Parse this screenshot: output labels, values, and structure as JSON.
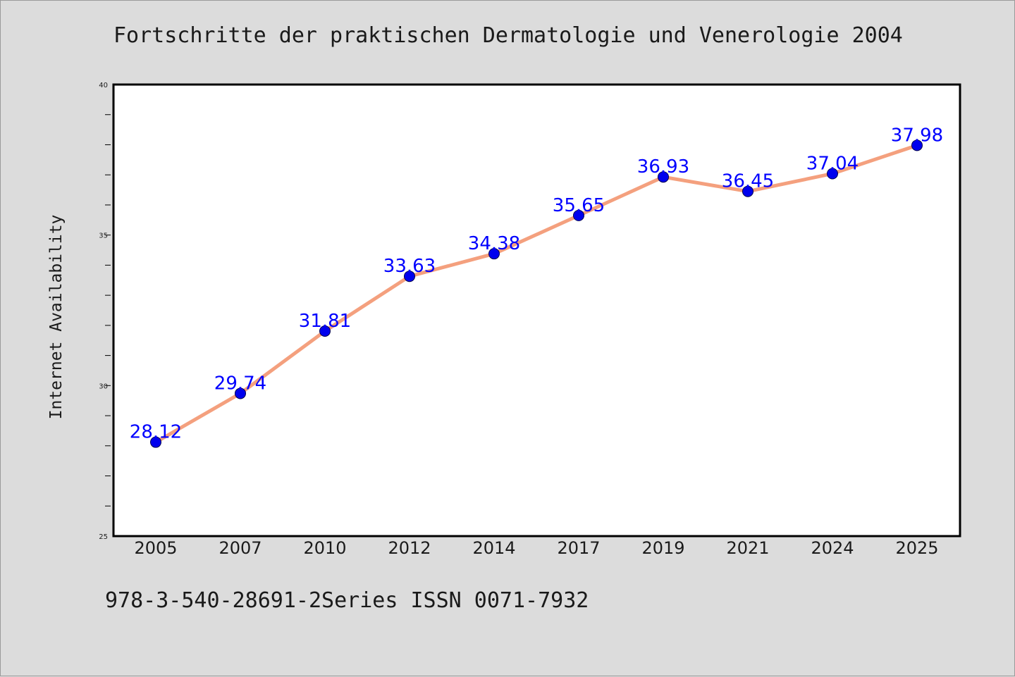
{
  "title": "Fortschritte der praktischen Dermatologie und Venerologie 2004",
  "footer": "978-3-540-28691-2Series ISSN 0071-7932",
  "colors": {
    "background": "#dcdcdc",
    "plot_background": "#ffffff",
    "line": "#f4a07e",
    "marker": "#0000ee",
    "data_label": "#0000ff"
  },
  "chart_data": {
    "type": "line",
    "title": "Fortschritte der praktischen Dermatologie und Venerologie 2004",
    "xlabel": "",
    "ylabel": "Internet Availability",
    "categories": [
      "2005",
      "2007",
      "2010",
      "2012",
      "2014",
      "2017",
      "2019",
      "2021",
      "2024",
      "2025"
    ],
    "series": [
      {
        "values": [
          28.12,
          29.74,
          31.81,
          33.63,
          34.38,
          35.65,
          36.93,
          36.45,
          37.04,
          37.98
        ],
        "labels": [
          "28.12",
          "29.74",
          "31.81",
          "33.63",
          "34.38",
          "35.65",
          "36.93",
          "36.45",
          "37.04",
          "37.98"
        ]
      }
    ],
    "ylim": [
      25,
      40
    ],
    "yticks": [
      "25",
      "30",
      "35",
      "40"
    ],
    "grid": false,
    "legend": "none"
  }
}
